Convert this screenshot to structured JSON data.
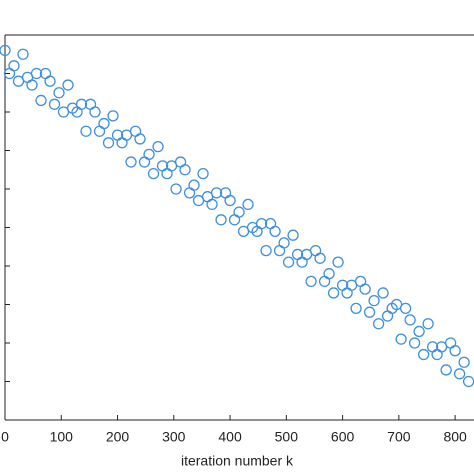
{
  "chart_data": {
    "type": "scatter",
    "x_label": "iteration number k",
    "x": [
      0,
      8,
      16,
      24,
      32,
      40,
      48,
      56,
      64,
      72,
      80,
      88,
      96,
      104,
      112,
      120,
      128,
      136,
      144,
      152,
      160,
      168,
      176,
      184,
      192,
      200,
      208,
      216,
      224,
      232,
      240,
      248,
      256,
      264,
      272,
      280,
      288,
      296,
      304,
      312,
      320,
      328,
      336,
      344,
      352,
      360,
      368,
      376,
      384,
      392,
      400,
      408,
      416,
      424,
      432,
      440,
      448,
      456,
      464,
      472,
      480,
      488,
      496,
      504,
      512,
      520,
      528,
      536,
      544,
      552,
      560,
      568,
      576,
      584,
      592,
      600,
      608,
      616,
      624,
      632,
      640,
      648,
      656,
      664,
      672,
      680,
      688,
      696,
      704,
      712,
      720,
      728,
      736,
      744,
      752,
      760,
      768,
      776,
      784,
      792,
      800,
      808,
      816,
      824
    ],
    "series": [
      {
        "color": "#3f8fe0",
        "values": [
          9.6,
          9.0,
          9.2,
          8.8,
          9.5,
          8.9,
          8.7,
          9.0,
          8.3,
          9.0,
          8.8,
          8.2,
          8.5,
          8.0,
          8.7,
          8.1,
          8.0,
          8.2,
          7.5,
          8.2,
          8.0,
          7.5,
          7.7,
          7.2,
          7.9,
          7.4,
          7.2,
          7.4,
          6.7,
          7.5,
          7.3,
          6.7,
          6.9,
          6.4,
          7.1,
          6.6,
          6.4,
          6.6,
          6.0,
          6.7,
          6.5,
          5.9,
          6.1,
          5.7,
          6.4,
          5.8,
          5.6,
          5.9,
          5.2,
          5.9,
          5.7,
          5.2,
          5.4,
          4.9,
          5.6,
          5.0,
          4.9,
          5.1,
          4.4,
          5.1,
          4.9,
          4.4,
          4.6,
          4.1,
          4.8,
          4.3,
          4.1,
          4.3,
          3.6,
          4.4,
          4.2,
          3.6,
          3.8,
          3.3,
          4.1,
          3.5,
          3.3,
          3.5,
          2.9,
          3.6,
          3.4,
          2.8,
          3.1,
          2.5,
          3.3,
          2.7,
          2.9,
          3.0,
          2.1,
          2.9,
          2.6,
          2.0,
          2.3,
          1.7,
          2.5,
          1.9,
          1.7,
          1.9,
          1.3,
          2.0,
          1.8,
          1.2,
          1.5,
          1.0
        ]
      }
    ],
    "xlim": [
      0,
      830
    ],
    "xticks": [
      0,
      100,
      200,
      300,
      400,
      500,
      600,
      700,
      800
    ],
    "ylim": [
      0,
      10
    ],
    "yticks": [
      1,
      2,
      3,
      4,
      5,
      6,
      7,
      8,
      9
    ]
  }
}
